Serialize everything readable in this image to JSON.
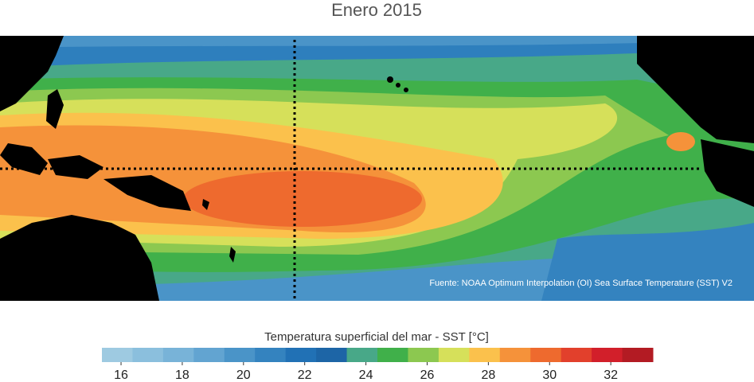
{
  "title": "Enero 2015",
  "source": "Fuente: NOAA Optimum Interpolation (OI) Sea Surface Temperature (SST) V2",
  "colorbar": {
    "label": "Temperatura superficial del mar - SST  [°C]",
    "range": [
      15.375,
      33.375
    ],
    "ticks": [
      16,
      18,
      20,
      22,
      24,
      26,
      28,
      30,
      32
    ],
    "colors": [
      "#9ecae1",
      "#8bbfdd",
      "#78b3d8",
      "#62a4d1",
      "#4a94c8",
      "#3483bf",
      "#2171b5",
      "#1d65a6",
      "#48a888",
      "#40b04a",
      "#8cc850",
      "#d6e05a",
      "#fbc14c",
      "#f5923a",
      "#ee6a2e",
      "#e2402c",
      "#d21f2a",
      "#b31b23"
    ]
  }
}
